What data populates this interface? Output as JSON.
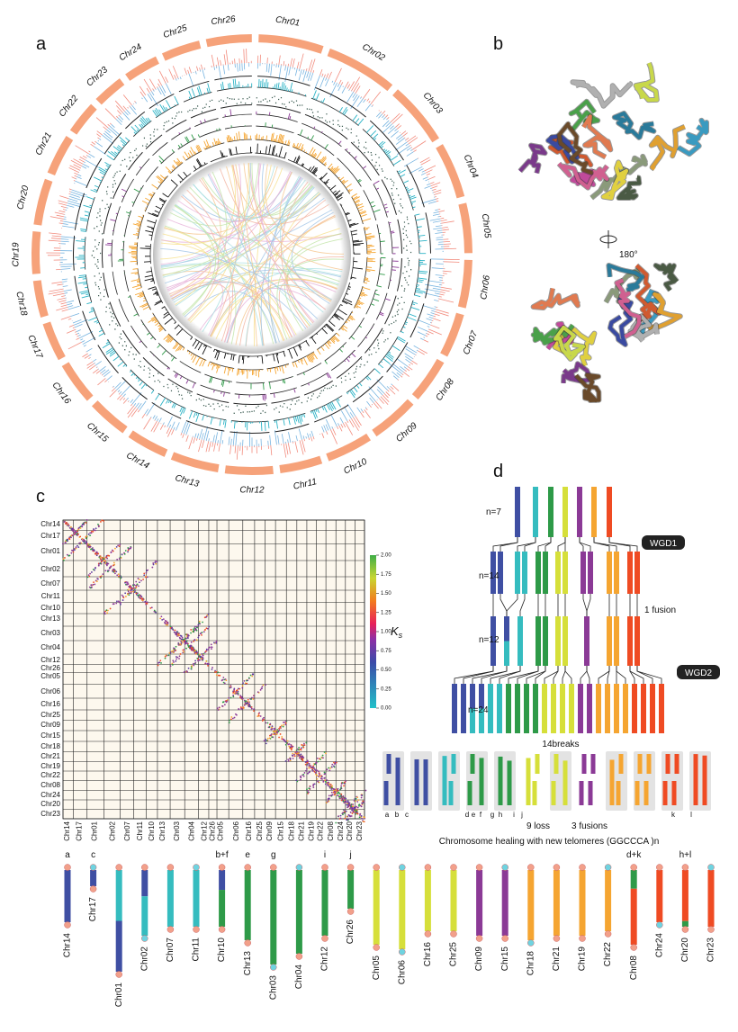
{
  "panel_labels": [
    "a",
    "b",
    "c",
    "d"
  ],
  "panel_a": {
    "chromosomes": [
      "Chr01",
      "Chr02",
      "Chr03",
      "Chr04",
      "Chr05",
      "Chr06",
      "Chr07",
      "Chr08",
      "Chr09",
      "Chr10",
      "Chr11",
      "Chr12",
      "Chr13",
      "Chr14",
      "Chr15",
      "Chr16",
      "Chr17",
      "Chr18",
      "Chr19",
      "Chr20",
      "Chr21",
      "Chr22",
      "Chr23",
      "Chr24",
      "Chr25",
      "Chr26"
    ]
  },
  "panel_b": {
    "rotation": "180°"
  },
  "panel_c": {
    "rows": [
      "Chr14",
      "Chr17",
      "Chr01",
      "Chr02",
      "Chr07",
      "Chr11",
      "Chr10",
      "Chr13",
      "Chr03",
      "Chr04",
      "Chr12",
      "Chr26",
      "Chr05",
      "Chr06",
      "Chr16",
      "Chr25",
      "Chr09",
      "Chr15",
      "Chr18",
      "Chr21",
      "Chr19",
      "Chr22",
      "Chr08",
      "Chr24",
      "Chr20",
      "Chr23"
    ],
    "columns": [
      "Chr14",
      "Chr17",
      "Chr01",
      "Chr02",
      "Chr07",
      "Chr11",
      "Chr10",
      "Chr13",
      "Chr03",
      "Chr04",
      "Chr12",
      "Chr26",
      "Chr05",
      "Chr06",
      "Chr16",
      "Chr25",
      "Chr09",
      "Chr15",
      "Chr18",
      "Chr21",
      "Chr19",
      "Chr22",
      "Chr08",
      "Chr24",
      "Chr20",
      "Chr23"
    ],
    "colorbar": {
      "label": "K",
      "label_sub": "s",
      "ticks": [
        {
          "value": 0,
          "label": "0.00"
        },
        {
          "value": 0.25,
          "label": "0.25"
        },
        {
          "value": 0.5,
          "label": "0.50"
        },
        {
          "value": 0.75,
          "label": "0.75"
        },
        {
          "value": 1,
          "label": "1.00"
        },
        {
          "value": 1.25,
          "label": "1.25"
        },
        {
          "value": 1.5,
          "label": "1.50"
        },
        {
          "value": 1.75,
          "label": "1.75"
        },
        {
          "value": 2,
          "label": "2.00"
        }
      ]
    }
  },
  "panel_d": {
    "levels": [
      "n=7",
      "n=14",
      "n=12",
      "n=24"
    ],
    "events": {
      "wgd1": "WGD1",
      "fusion": "1 fusion",
      "wgd2": "WGD2",
      "breaks": "14breaks",
      "loss": "9 loss",
      "fusions": "3 fusions"
    },
    "letters": [
      "a",
      "b",
      "c",
      "d",
      "e",
      "f",
      "g",
      "h",
      "i",
      "j",
      "k",
      "l"
    ],
    "caption": "Chromosome healing with new telomeres (GGCCCA )n"
  },
  "karyotype": {
    "chromosomes": [
      {
        "tag": "a",
        "name": "Chr14"
      },
      {
        "tag": "c",
        "name": "Chr17"
      },
      {
        "name": "Chr01"
      },
      {
        "name": "Chr02"
      },
      {
        "name": "Chr07"
      },
      {
        "name": "Chr11"
      },
      {
        "tag": "b+f",
        "name": "Chr10"
      },
      {
        "tag": "e",
        "name": "Chr13"
      },
      {
        "tag": "g",
        "name": "Chr03"
      },
      {
        "name": "Chr04"
      },
      {
        "tag": "i",
        "name": "Chr12"
      },
      {
        "tag": "j",
        "name": "Chr26"
      },
      {
        "name": "Chr05"
      },
      {
        "name": "Chr06"
      },
      {
        "name": "Chr16"
      },
      {
        "name": "Chr25"
      },
      {
        "name": "Chr09"
      },
      {
        "name": "Chr15"
      },
      {
        "name": "Chr18"
      },
      {
        "name": "Chr21"
      },
      {
        "name": "Chr19"
      },
      {
        "name": "Chr22"
      },
      {
        "tag": "d+k",
        "name": "Chr08"
      },
      {
        "name": "Chr24"
      },
      {
        "tag": "h+l",
        "name": "Chr20"
      },
      {
        "name": "Chr23"
      }
    ]
  }
}
